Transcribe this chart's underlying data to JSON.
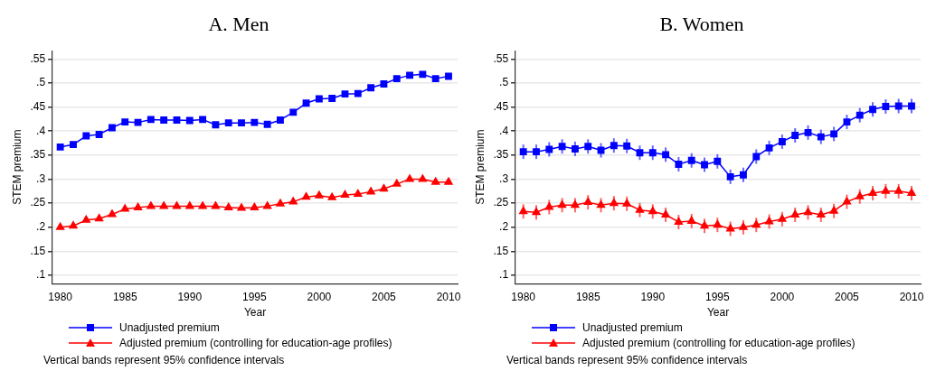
{
  "chart_data": [
    {
      "type": "line",
      "title": "A. Men",
      "xlabel": "Year",
      "ylabel": "STEM premium",
      "x": [
        1980,
        1981,
        1982,
        1983,
        1984,
        1985,
        1986,
        1987,
        1988,
        1989,
        1990,
        1991,
        1992,
        1993,
        1994,
        1995,
        1996,
        1997,
        1998,
        1999,
        2000,
        2001,
        2002,
        2003,
        2004,
        2005,
        2006,
        2007,
        2008,
        2009,
        2010
      ],
      "series": [
        {
          "name": "Unadjusted premium",
          "color": "#0000ff",
          "marker": "square",
          "values": [
            0.367,
            0.372,
            0.39,
            0.393,
            0.407,
            0.419,
            0.418,
            0.424,
            0.423,
            0.423,
            0.422,
            0.424,
            0.413,
            0.417,
            0.417,
            0.418,
            0.414,
            0.423,
            0.439,
            0.458,
            0.467,
            0.468,
            0.477,
            0.478,
            0.49,
            0.498,
            0.509,
            0.516,
            0.518,
            0.509,
            0.514
          ]
        },
        {
          "name": "Adjusted premium (controlling for education-age profiles)",
          "color": "#ff0000",
          "marker": "triangle",
          "values": [
            0.2,
            0.203,
            0.215,
            0.218,
            0.227,
            0.238,
            0.241,
            0.244,
            0.244,
            0.244,
            0.244,
            0.244,
            0.244,
            0.241,
            0.24,
            0.241,
            0.244,
            0.249,
            0.253,
            0.263,
            0.266,
            0.262,
            0.267,
            0.269,
            0.274,
            0.28,
            0.29,
            0.3,
            0.3,
            0.294,
            0.294
          ]
        }
      ],
      "xlim": [
        1979.4,
        2010.7
      ],
      "xticks": [
        1980,
        1985,
        1990,
        1995,
        2000,
        2005,
        2010
      ],
      "ylim": [
        0.083,
        0.567
      ],
      "yticks": [
        {
          "value": 0.1,
          "label": ".1"
        },
        {
          "value": 0.15,
          "label": ".15"
        },
        {
          "value": 0.2,
          "label": ".2"
        },
        {
          "value": 0.25,
          "label": ".25"
        },
        {
          "value": 0.3,
          "label": ".3"
        },
        {
          "value": 0.35,
          "label": ".35"
        },
        {
          "value": 0.4,
          "label": ".4"
        },
        {
          "value": 0.45,
          "label": ".45"
        },
        {
          "value": 0.5,
          "label": ".5"
        },
        {
          "value": 0.55,
          "label": ".55"
        }
      ],
      "grid": "y",
      "legend": "bottom",
      "annotations": [
        "Vertical bands represent 95% confidence intervals"
      ]
    },
    {
      "type": "line",
      "title": "B. Women",
      "xlabel": "Year",
      "ylabel": "STEM premium",
      "x": [
        1980,
        1981,
        1982,
        1983,
        1984,
        1985,
        1986,
        1987,
        1988,
        1989,
        1990,
        1991,
        1992,
        1993,
        1994,
        1995,
        1996,
        1997,
        1998,
        1999,
        2000,
        2001,
        2002,
        2003,
        2004,
        2005,
        2006,
        2007,
        2008,
        2009,
        2010
      ],
      "series": [
        {
          "name": "Unadjusted premium",
          "color": "#0000ff",
          "marker": "square",
          "values": [
            0.357,
            0.357,
            0.362,
            0.368,
            0.363,
            0.368,
            0.36,
            0.37,
            0.369,
            0.355,
            0.355,
            0.351,
            0.331,
            0.339,
            0.33,
            0.337,
            0.305,
            0.309,
            0.347,
            0.365,
            0.378,
            0.391,
            0.397,
            0.388,
            0.394,
            0.419,
            0.433,
            0.445,
            0.451,
            0.452,
            0.452
          ],
          "errors": [
            0.015,
            0.015,
            0.015,
            0.015,
            0.015,
            0.015,
            0.015,
            0.015,
            0.015,
            0.015,
            0.015,
            0.015,
            0.015,
            0.015,
            0.015,
            0.015,
            0.015,
            0.015,
            0.015,
            0.015,
            0.015,
            0.015,
            0.015,
            0.015,
            0.015,
            0.015,
            0.015,
            0.015,
            0.015,
            0.015,
            0.015
          ]
        },
        {
          "name": "Adjusted premium (controlling for education-age profiles)",
          "color": "#ff0000",
          "marker": "triangle",
          "values": [
            0.233,
            0.231,
            0.242,
            0.246,
            0.246,
            0.252,
            0.246,
            0.25,
            0.249,
            0.236,
            0.233,
            0.226,
            0.211,
            0.213,
            0.203,
            0.205,
            0.197,
            0.2,
            0.205,
            0.212,
            0.217,
            0.226,
            0.231,
            0.226,
            0.234,
            0.253,
            0.264,
            0.271,
            0.275,
            0.275,
            0.271
          ],
          "errors": [
            0.015,
            0.015,
            0.015,
            0.015,
            0.015,
            0.015,
            0.015,
            0.015,
            0.015,
            0.015,
            0.015,
            0.015,
            0.015,
            0.015,
            0.015,
            0.015,
            0.015,
            0.015,
            0.015,
            0.015,
            0.015,
            0.015,
            0.015,
            0.015,
            0.015,
            0.015,
            0.015,
            0.015,
            0.015,
            0.015,
            0.015
          ]
        }
      ],
      "xlim": [
        1979.4,
        2010.7
      ],
      "xticks": [
        1980,
        1985,
        1990,
        1995,
        2000,
        2005,
        2010
      ],
      "ylim": [
        0.083,
        0.567
      ],
      "yticks": [
        {
          "value": 0.1,
          "label": ".1"
        },
        {
          "value": 0.15,
          "label": ".15"
        },
        {
          "value": 0.2,
          "label": ".2"
        },
        {
          "value": 0.25,
          "label": ".25"
        },
        {
          "value": 0.3,
          "label": ".3"
        },
        {
          "value": 0.35,
          "label": ".35"
        },
        {
          "value": 0.4,
          "label": ".4"
        },
        {
          "value": 0.45,
          "label": ".45"
        },
        {
          "value": 0.5,
          "label": ".5"
        },
        {
          "value": 0.55,
          "label": ".55"
        }
      ],
      "grid": "y",
      "legend": "bottom",
      "annotations": [
        "Vertical bands represent 95% confidence intervals"
      ]
    }
  ]
}
